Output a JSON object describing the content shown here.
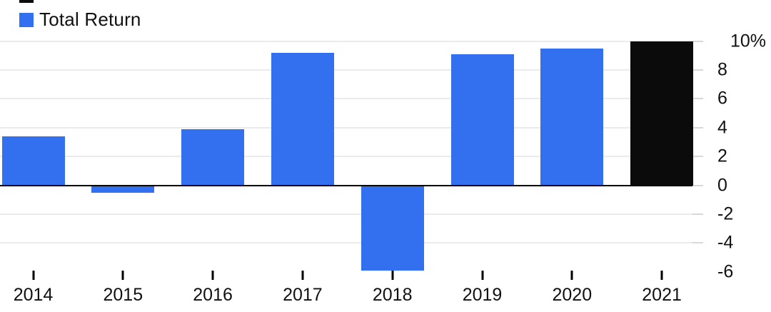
{
  "legend": {
    "label": "Total Return"
  },
  "colors": {
    "bar_blue": "#3370F0",
    "bar_black": "#0B0B0B",
    "grid": "#ebebeb",
    "axis": "#000000",
    "right_tick": "#d8d8d8",
    "text": "#111111"
  },
  "chart_data": {
    "type": "bar",
    "title": "Total Return",
    "categories": [
      "2014",
      "2015",
      "2016",
      "2017",
      "2018",
      "2019",
      "2020",
      "2021"
    ],
    "series": [
      {
        "name": "Total Return",
        "values": [
          3.4,
          -0.5,
          3.9,
          9.2,
          -5.9,
          9.1,
          9.5,
          10.0
        ]
      }
    ],
    "bar_colors": [
      "blue",
      "blue",
      "blue",
      "blue",
      "blue",
      "blue",
      "blue",
      "black"
    ],
    "xlabel": "",
    "ylabel": "",
    "ylim": [
      -6.5,
      10.5
    ],
    "yticks": [
      10,
      8,
      6,
      4,
      2,
      0,
      -2,
      -4,
      -6
    ],
    "ytick_labels": [
      "10%",
      "8",
      "6",
      "4",
      "2",
      "0",
      "-2",
      "-4",
      "-6"
    ],
    "grid": "horizontal",
    "legend_position": "top-left",
    "axis_side": "right",
    "note": "2021 bar shown in black"
  }
}
